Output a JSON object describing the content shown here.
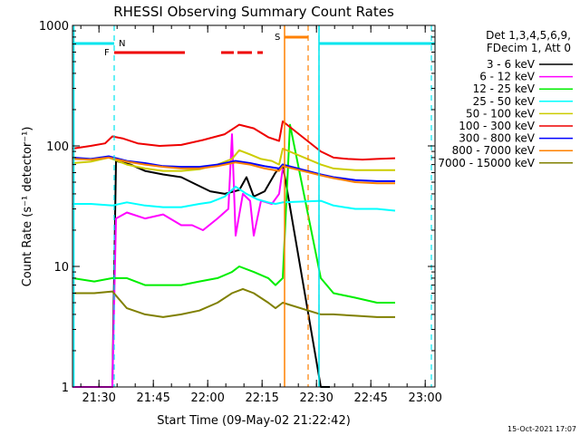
{
  "chart_data": {
    "type": "line",
    "title": "RHESSI Observing Summary Count Rates",
    "xlabel": "Start Time (09-May-02 21:22:42)",
    "ylabel": "Count Rate (s⁻¹ detector⁻¹)",
    "x_tick_labels": [
      "21:30",
      "21:45",
      "22:00",
      "22:15",
      "22:30",
      "22:45",
      "23:00"
    ],
    "x_tick_minutes": [
      7.3,
      22.3,
      37.3,
      52.3,
      67.3,
      82.3,
      97.3
    ],
    "xlim_minutes": [
      0,
      100
    ],
    "y_scale": "log",
    "ylim": [
      1,
      1000
    ],
    "y_tick_labels": [
      "1",
      "10",
      "100",
      "1000"
    ],
    "y_tick_values": [
      1,
      10,
      100,
      1000
    ],
    "grid": false,
    "legend_placement": "right",
    "legend_header": [
      "Det 1,3,4,5,6,9,",
      "FDecim 1, Att 0"
    ],
    "footer_date": "15-Oct-2021 17:07",
    "flags": {
      "night_label": "N",
      "flare_label": "F",
      "saa_label": "S",
      "night_color": "#00e5ee",
      "flare_color": "#ee0000",
      "saa_color": "#ff8000",
      "night_intervals_min": [
        [
          0,
          11.5
        ],
        [
          68.0,
          100
        ]
      ],
      "flare_intervals_min": [
        [
          11.5,
          31.0
        ],
        [
          41.0,
          44.5
        ],
        [
          45.5,
          49.5
        ],
        [
          51.0,
          52.5
        ]
      ],
      "saa_intervals_min": [
        [
          58.5,
          65.0
        ]
      ],
      "saa_fill_min": [
        58.5,
        66.5
      ],
      "night_dashed_lines_min": [
        11.5,
        68.0,
        99.0
      ],
      "night_solid_lines_min": [
        0,
        68.0
      ],
      "saa_dashed_lines_min": [
        65.0
      ],
      "saa_solid_lines_min": [
        58.5
      ]
    },
    "series": [
      {
        "name": "3 - 6 keV",
        "color": "#000000",
        "points": [
          [
            0,
            1.0
          ],
          [
            11,
            1.0
          ],
          [
            12,
            75
          ],
          [
            16,
            70
          ],
          [
            20,
            62
          ],
          [
            25,
            58
          ],
          [
            30,
            55
          ],
          [
            34,
            48
          ],
          [
            38,
            42
          ],
          [
            42,
            40
          ],
          [
            46,
            43
          ],
          [
            48,
            55
          ],
          [
            50,
            38
          ],
          [
            53,
            42
          ],
          [
            56,
            60
          ],
          [
            58,
            70
          ],
          [
            68.5,
            1.0
          ],
          [
            71,
            1.0
          ]
        ]
      },
      {
        "name": "6 - 12 keV",
        "color": "#ff00ff",
        "points": [
          [
            0,
            1.0
          ],
          [
            11,
            1.0
          ],
          [
            12,
            25
          ],
          [
            15,
            28
          ],
          [
            20,
            25
          ],
          [
            25,
            27
          ],
          [
            30,
            22
          ],
          [
            33,
            22
          ],
          [
            36,
            20
          ],
          [
            40,
            25
          ],
          [
            43,
            30
          ],
          [
            44,
            125
          ],
          [
            45,
            18
          ],
          [
            47,
            40
          ],
          [
            49,
            35
          ],
          [
            50,
            18
          ],
          [
            52,
            35
          ],
          [
            55,
            33
          ],
          [
            57,
            40
          ],
          [
            58,
            65
          ]
        ]
      },
      {
        "name": "12 - 25 keV",
        "color": "#00ee00",
        "points": [
          [
            0,
            8
          ],
          [
            6,
            7.5
          ],
          [
            11,
            8
          ],
          [
            15,
            8
          ],
          [
            20,
            7
          ],
          [
            25,
            7
          ],
          [
            30,
            7
          ],
          [
            35,
            7.5
          ],
          [
            40,
            8
          ],
          [
            44,
            9
          ],
          [
            46,
            10
          ],
          [
            50,
            9
          ],
          [
            54,
            8
          ],
          [
            56,
            7
          ],
          [
            58,
            8
          ],
          [
            60,
            150
          ],
          [
            68.5,
            8
          ],
          [
            72,
            6
          ],
          [
            78,
            5.5
          ],
          [
            84,
            5
          ],
          [
            89,
            5
          ]
        ]
      },
      {
        "name": "25 - 50 keV",
        "color": "#00ffff",
        "points": [
          [
            0,
            33
          ],
          [
            5,
            33
          ],
          [
            11,
            32
          ],
          [
            15,
            34
          ],
          [
            20,
            32
          ],
          [
            25,
            31
          ],
          [
            30,
            31
          ],
          [
            35,
            33
          ],
          [
            38,
            34
          ],
          [
            42,
            38
          ],
          [
            45,
            46
          ],
          [
            48,
            40
          ],
          [
            51,
            36
          ],
          [
            54,
            34
          ],
          [
            56,
            33
          ],
          [
            58,
            34
          ],
          [
            68.5,
            35
          ],
          [
            72,
            32
          ],
          [
            78,
            30
          ],
          [
            84,
            30
          ],
          [
            89,
            29
          ]
        ]
      },
      {
        "name": "50 - 100 keV",
        "color": "#cccc00",
        "points": [
          [
            0,
            72
          ],
          [
            5,
            74
          ],
          [
            10,
            80
          ],
          [
            15,
            70
          ],
          [
            20,
            65
          ],
          [
            25,
            62
          ],
          [
            30,
            62
          ],
          [
            35,
            64
          ],
          [
            40,
            70
          ],
          [
            44,
            78
          ],
          [
            46,
            92
          ],
          [
            49,
            85
          ],
          [
            52,
            78
          ],
          [
            55,
            75
          ],
          [
            57,
            70
          ],
          [
            58,
            95
          ],
          [
            68.5,
            70
          ],
          [
            72,
            65
          ],
          [
            78,
            63
          ],
          [
            84,
            63
          ],
          [
            89,
            63
          ]
        ]
      },
      {
        "name": "100 - 300 keV",
        "color": "#ee0000",
        "points": [
          [
            0,
            95
          ],
          [
            5,
            100
          ],
          [
            9,
            105
          ],
          [
            11,
            120
          ],
          [
            14,
            115
          ],
          [
            18,
            105
          ],
          [
            24,
            100
          ],
          [
            30,
            102
          ],
          [
            36,
            112
          ],
          [
            42,
            125
          ],
          [
            46,
            150
          ],
          [
            50,
            140
          ],
          [
            54,
            118
          ],
          [
            57,
            110
          ],
          [
            58,
            160
          ],
          [
            68.5,
            90
          ],
          [
            72,
            80
          ],
          [
            76,
            78
          ],
          [
            80,
            77
          ],
          [
            84,
            78
          ],
          [
            89,
            79
          ]
        ]
      },
      {
        "name": "300 - 800 keV",
        "color": "#0000ff",
        "points": [
          [
            0,
            80
          ],
          [
            5,
            78
          ],
          [
            10,
            82
          ],
          [
            15,
            75
          ],
          [
            20,
            72
          ],
          [
            25,
            68
          ],
          [
            30,
            67
          ],
          [
            35,
            67
          ],
          [
            40,
            70
          ],
          [
            45,
            75
          ],
          [
            49,
            72
          ],
          [
            53,
            68
          ],
          [
            57,
            65
          ],
          [
            58,
            70
          ],
          [
            68.5,
            58
          ],
          [
            72,
            55
          ],
          [
            78,
            52
          ],
          [
            84,
            51
          ],
          [
            89,
            51
          ]
        ]
      },
      {
        "name": "800 - 7000 keV",
        "color": "#ff8000",
        "points": [
          [
            0,
            78
          ],
          [
            5,
            77
          ],
          [
            10,
            80
          ],
          [
            15,
            74
          ],
          [
            20,
            70
          ],
          [
            25,
            67
          ],
          [
            30,
            65
          ],
          [
            35,
            65
          ],
          [
            40,
            68
          ],
          [
            45,
            73
          ],
          [
            49,
            70
          ],
          [
            53,
            65
          ],
          [
            57,
            62
          ],
          [
            58,
            68
          ],
          [
            68.5,
            57
          ],
          [
            72,
            54
          ],
          [
            78,
            50
          ],
          [
            84,
            49
          ],
          [
            89,
            49
          ]
        ]
      },
      {
        "name": "7000 - 15000 keV",
        "color": "#808000",
        "points": [
          [
            0,
            6
          ],
          [
            6,
            6
          ],
          [
            11,
            6.2
          ],
          [
            15,
            4.5
          ],
          [
            20,
            4
          ],
          [
            25,
            3.8
          ],
          [
            30,
            4
          ],
          [
            35,
            4.3
          ],
          [
            40,
            5
          ],
          [
            44,
            6
          ],
          [
            47,
            6.5
          ],
          [
            50,
            6
          ],
          [
            54,
            5
          ],
          [
            56,
            4.5
          ],
          [
            58,
            5
          ],
          [
            68.5,
            4
          ],
          [
            72,
            4
          ],
          [
            78,
            3.9
          ],
          [
            84,
            3.8
          ],
          [
            89,
            3.8
          ]
        ]
      }
    ]
  }
}
